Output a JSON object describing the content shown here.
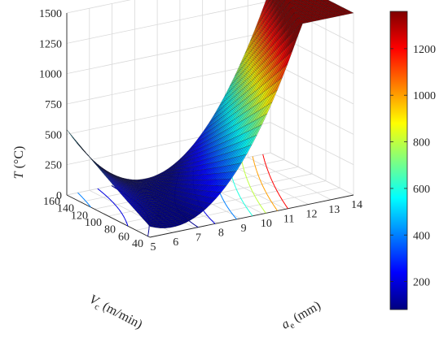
{
  "chart_data": {
    "type": "surface3d",
    "title": "",
    "zlabel": {
      "italic": "T",
      "rest": " (°C)"
    },
    "xlabel": {
      "italic": "V",
      "sub": "c",
      "rest": " (m/min)"
    },
    "ylabel": {
      "italic": "a",
      "sub": "e",
      "rest": " (mm)"
    },
    "x_range": [
      40,
      160
    ],
    "y_range": [
      5,
      14
    ],
    "z_range": [
      0,
      1500
    ],
    "x_ticks": [
      "40",
      "60",
      "80",
      "100",
      "120",
      "140",
      "160"
    ],
    "y_ticks": [
      "5",
      "6",
      "7",
      "8",
      "9",
      "10",
      "11",
      "12",
      "13",
      "14"
    ],
    "z_ticks": [
      "0",
      "250",
      "500",
      "750",
      "1000",
      "1250",
      "1500"
    ],
    "colorbar": {
      "range": [
        80,
        1360
      ],
      "ticks": [
        "200",
        "400",
        "600",
        "800",
        "1000",
        "1200"
      ],
      "tick_values": [
        200,
        400,
        600,
        800,
        1000,
        1200
      ]
    },
    "surface_corner_values": {
      "Vc_40_ae_5": 90,
      "Vc_160_ae_5": 540,
      "Vc_160_ae_14": 1360,
      "Vc_40_ae_14": 1000,
      "minimum": 80
    },
    "colormap": "jet",
    "grid": true,
    "floor_contours": true
  }
}
